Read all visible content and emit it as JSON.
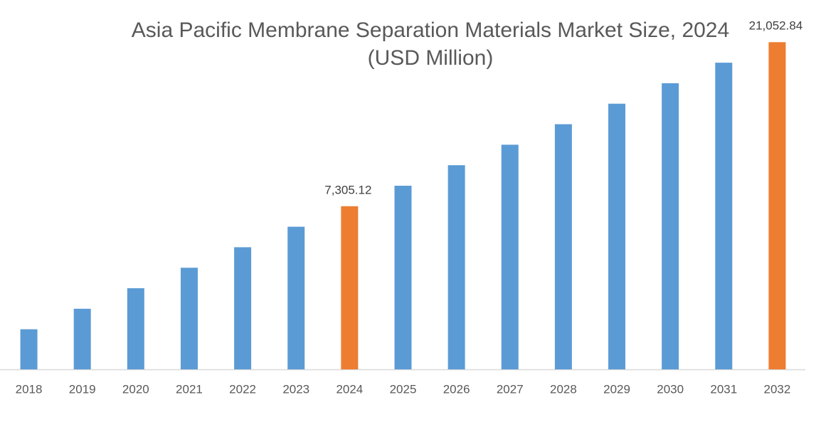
{
  "chart_data": {
    "type": "bar",
    "title": "Asia Pacific Membrane Separation Materials Market Size, 2024",
    "subtitle": "(USD Million)",
    "categories": [
      "2018",
      "2019",
      "2020",
      "2021",
      "2022",
      "2023",
      "2024",
      "2025",
      "2026",
      "2027",
      "2028",
      "2029",
      "2030",
      "2031",
      "2032"
    ],
    "values": [
      3303,
      3770,
      4304,
      4912,
      5607,
      6400,
      7305.12,
      8338,
      9518,
      10864,
      12401,
      14155,
      16157,
      18443,
      21052.84
    ],
    "value_labels": [
      null,
      null,
      null,
      null,
      null,
      null,
      "7,305.12",
      null,
      null,
      null,
      null,
      null,
      null,
      null,
      "21,052.84"
    ],
    "colors": [
      "#5b9bd5",
      "#5b9bd5",
      "#5b9bd5",
      "#5b9bd5",
      "#5b9bd5",
      "#5b9bd5",
      "#ed7d31",
      "#5b9bd5",
      "#5b9bd5",
      "#5b9bd5",
      "#5b9bd5",
      "#5b9bd5",
      "#5b9bd5",
      "#5b9bd5",
      "#ed7d31"
    ],
    "ylim": [
      2550,
      23000
    ],
    "log_scale": true
  }
}
